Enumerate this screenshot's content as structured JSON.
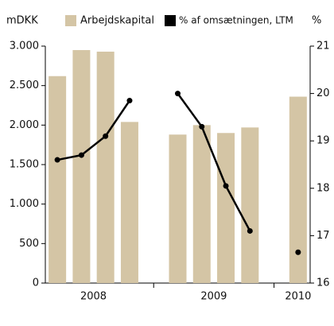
{
  "chart_data": {
    "type": "bar",
    "left_unit": "mDKK",
    "right_unit": "%",
    "categories": [
      null,
      null,
      null,
      null,
      null,
      null,
      null,
      null,
      null,
      null,
      null
    ],
    "x_groups": [
      "2008",
      "2009",
      "2010"
    ],
    "series": [
      {
        "name": "Arbejdskapital",
        "color": "#d4c5a5",
        "type": "bar",
        "values": [
          2620,
          2950,
          2930,
          2040,
          null,
          1880,
          2000,
          1900,
          1970,
          null,
          2360
        ]
      },
      {
        "name": "% af omsætningen, LTM",
        "color": "#000000",
        "type": "line",
        "axis": "y2",
        "values": [
          18.6,
          18.7,
          19.1,
          19.85,
          null,
          20.0,
          19.3,
          18.05,
          17.1,
          null,
          16.65
        ]
      }
    ],
    "ylim": [
      0,
      3000
    ],
    "yticks": [
      0,
      500,
      {
        "value": 1000,
        "label": "1.000"
      },
      {
        "value": 1500,
        "label": "1.500"
      },
      {
        "value": 2000,
        "label": "2.000"
      },
      {
        "value": 2500,
        "label": "2.500"
      },
      {
        "value": 3000,
        "label": "3.000"
      }
    ],
    "y2lim": [
      16,
      21
    ],
    "y2ticks": [
      16,
      17,
      18,
      19,
      20,
      21
    ],
    "grid": false
  }
}
